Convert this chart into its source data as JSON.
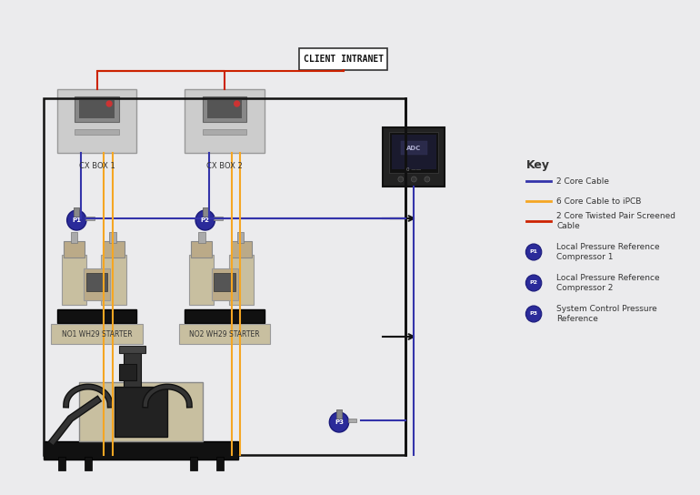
{
  "bg_color": "#EBEBED",
  "line_colors": {
    "blue": "#3333AA",
    "orange": "#F5A623",
    "red": "#CC2200",
    "black": "#111111"
  },
  "key": {
    "title": "Key",
    "entries": [
      {
        "type": "line",
        "color": "#3333AA",
        "label": "2 Core Cable"
      },
      {
        "type": "line",
        "color": "#F5A623",
        "label": "6 Core Cable to iPCB"
      },
      {
        "type": "line",
        "color": "#CC2200",
        "label": "2 Core Twisted Pair Screened\nCable"
      },
      {
        "type": "circle",
        "color": "#2B2B9A",
        "text": "P1",
        "label": "Local Pressure Reference\nCompressor 1"
      },
      {
        "type": "circle",
        "color": "#2B2B9A",
        "text": "P2",
        "label": "Local Pressure Reference\nCompressor 2"
      },
      {
        "type": "circle",
        "color": "#2B2B9A",
        "text": "P3",
        "label": "System Control Pressure\nReference"
      }
    ]
  },
  "labels": {
    "cx_box_1": "CX BOX 1",
    "cx_box_2": "CX BOX 2",
    "client_intranet": "CLIENT INTRANET",
    "no1_starter": "NO1 WH29 STARTER",
    "no2_starter": "NO2 WH29 STARTER"
  },
  "equipment_color": "#C8BFA0",
  "equipment_dark": "#3D3D3D",
  "box_color": "#D3D3D3",
  "box_border": "#888888"
}
